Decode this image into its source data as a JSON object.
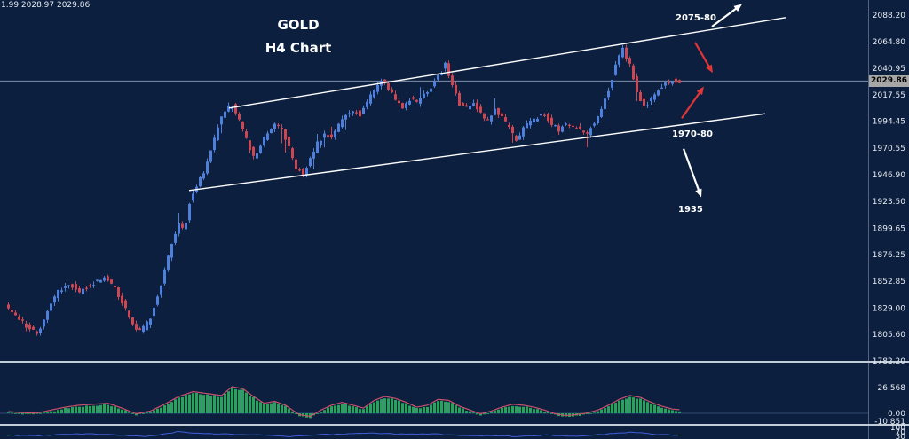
{
  "header": {
    "quote_line": "1.99 2028.97 2029.86",
    "title": "GOLD",
    "subtitle": "H4 Chart"
  },
  "colors": {
    "background": "#0c1f3f",
    "bull": "#4d7fdb",
    "bear": "#cc4752",
    "histogram": "#27a35b",
    "signal_line": "#c9506a",
    "indicator_line": "#3f5fd9",
    "trendline": "#ffffff",
    "annotation_red": "#e23535",
    "price_line": "#7e8ea8",
    "separator": "#c2cbd8",
    "axis_text": "#e8edf4",
    "current_price_bg": "#a7a7a7",
    "current_price_text": "#000000"
  },
  "price_axis": {
    "ticks": [
      "2088.20",
      "2064.80",
      "2040.95",
      "2017.55",
      "1994.45",
      "1970.55",
      "1946.90",
      "1923.50",
      "1899.65",
      "1876.25",
      "1852.85",
      "1829.00",
      "1805.60",
      "1782.20"
    ],
    "current": "2029.86"
  },
  "indicator1_axis": [
    "26.568",
    "0.00",
    "-10.851"
  ],
  "indicator2_axis": [
    "100",
    "70",
    "30"
  ],
  "chart_data": {
    "type": "candlestick",
    "symbol": "GOLD",
    "timeframe": "H4",
    "title": "GOLD H4 Chart",
    "y_axis": {
      "top": 2088.2,
      "bottom": 1782.2,
      "grid": false
    },
    "current_price": 2029.86,
    "price_path": [
      [
        8,
        1832
      ],
      [
        20,
        1822
      ],
      [
        34,
        1812
      ],
      [
        44,
        1806
      ],
      [
        56,
        1826
      ],
      [
        68,
        1845
      ],
      [
        82,
        1850
      ],
      [
        92,
        1843
      ],
      [
        102,
        1850
      ],
      [
        112,
        1852
      ],
      [
        122,
        1856
      ],
      [
        132,
        1846
      ],
      [
        142,
        1832
      ],
      [
        152,
        1813
      ],
      [
        162,
        1809
      ],
      [
        172,
        1820
      ],
      [
        180,
        1840
      ],
      [
        188,
        1862
      ],
      [
        196,
        1885
      ],
      [
        204,
        1905
      ],
      [
        210,
        1898
      ],
      [
        216,
        1922
      ],
      [
        224,
        1938
      ],
      [
        232,
        1950
      ],
      [
        240,
        1968
      ],
      [
        248,
        1990
      ],
      [
        256,
        2005
      ],
      [
        264,
        2008
      ],
      [
        272,
        1995
      ],
      [
        280,
        1978
      ],
      [
        288,
        1962
      ],
      [
        296,
        1972
      ],
      [
        304,
        1985
      ],
      [
        312,
        1992
      ],
      [
        320,
        1988
      ],
      [
        328,
        1972
      ],
      [
        336,
        1953
      ],
      [
        344,
        1948
      ],
      [
        352,
        1962
      ],
      [
        360,
        1975
      ],
      [
        368,
        1983
      ],
      [
        376,
        1979
      ],
      [
        384,
        1990
      ],
      [
        392,
        2000
      ],
      [
        400,
        2004
      ],
      [
        408,
        2000
      ],
      [
        416,
        2012
      ],
      [
        424,
        2022
      ],
      [
        432,
        2032
      ],
      [
        440,
        2024
      ],
      [
        448,
        2012
      ],
      [
        456,
        2005
      ],
      [
        464,
        2014
      ],
      [
        472,
        2010
      ],
      [
        480,
        2018
      ],
      [
        488,
        2024
      ],
      [
        496,
        2034
      ],
      [
        504,
        2044
      ],
      [
        512,
        2028
      ],
      [
        520,
        2010
      ],
      [
        528,
        2006
      ],
      [
        536,
        2012
      ],
      [
        544,
        2000
      ],
      [
        552,
        1996
      ],
      [
        560,
        2004
      ],
      [
        568,
        1998
      ],
      [
        576,
        1988
      ],
      [
        584,
        1976
      ],
      [
        592,
        1988
      ],
      [
        600,
        1994
      ],
      [
        608,
        1998
      ],
      [
        616,
        2000
      ],
      [
        624,
        1992
      ],
      [
        632,
        1986
      ],
      [
        640,
        1992
      ],
      [
        648,
        1990
      ],
      [
        656,
        1986
      ],
      [
        664,
        1984
      ],
      [
        672,
        1994
      ],
      [
        680,
        2006
      ],
      [
        688,
        2022
      ],
      [
        696,
        2044
      ],
      [
        704,
        2058
      ],
      [
        712,
        2044
      ],
      [
        720,
        2022
      ],
      [
        728,
        2006
      ],
      [
        736,
        2014
      ],
      [
        744,
        2022
      ],
      [
        752,
        2028
      ],
      [
        760,
        2030
      ],
      [
        768,
        2030
      ]
    ],
    "channel": {
      "upper": [
        [
          258,
          2006
        ],
        [
          885,
          2086
        ]
      ],
      "lower": [
        [
          213,
          1933
        ],
        [
          862,
          2001
        ]
      ]
    },
    "arrows": [
      {
        "color": "white",
        "dir": "up",
        "from": [
          802,
          2078
        ],
        "to": [
          836,
          2098
        ]
      },
      {
        "color": "red",
        "dir": "down",
        "from": [
          783,
          2064
        ],
        "to": [
          803,
          2037
        ]
      },
      {
        "color": "red",
        "dir": "up",
        "from": [
          768,
          1997
        ],
        "to": [
          793,
          2025
        ]
      },
      {
        "color": "white",
        "dir": "down",
        "from": [
          770,
          1970
        ],
        "to": [
          790,
          1927
        ]
      }
    ],
    "annotations": [
      {
        "text": "2075-80",
        "x": 785,
        "price": 2072
      },
      {
        "text": "1970-80",
        "x": 782,
        "price": 1972
      },
      {
        "text": "1935",
        "x": 778,
        "price": 1905
      }
    ],
    "indicators": [
      {
        "name": "momentum-histogram",
        "type": "bar",
        "ylim": [
          -10.851,
          26.568
        ],
        "scale_labels": [
          "26.568",
          "0.00",
          "-10.851"
        ],
        "path": [
          [
            8,
            0.5
          ],
          [
            24,
            -0.8
          ],
          [
            40,
            -1.2
          ],
          [
            56,
            2
          ],
          [
            72,
            5
          ],
          [
            88,
            7
          ],
          [
            104,
            8
          ],
          [
            120,
            9
          ],
          [
            136,
            4
          ],
          [
            152,
            -2
          ],
          [
            168,
            1
          ],
          [
            184,
            8
          ],
          [
            200,
            16
          ],
          [
            216,
            21
          ],
          [
            232,
            19
          ],
          [
            248,
            17
          ],
          [
            260,
            26
          ],
          [
            272,
            24
          ],
          [
            284,
            16
          ],
          [
            296,
            9
          ],
          [
            308,
            11
          ],
          [
            320,
            7
          ],
          [
            336,
            -3
          ],
          [
            348,
            -5
          ],
          [
            360,
            2
          ],
          [
            372,
            7
          ],
          [
            384,
            10
          ],
          [
            396,
            7
          ],
          [
            408,
            4
          ],
          [
            420,
            12
          ],
          [
            432,
            16
          ],
          [
            444,
            14
          ],
          [
            456,
            10
          ],
          [
            468,
            5
          ],
          [
            480,
            7
          ],
          [
            492,
            13
          ],
          [
            504,
            12
          ],
          [
            516,
            6
          ],
          [
            528,
            2
          ],
          [
            540,
            -2
          ],
          [
            552,
            1
          ],
          [
            564,
            5
          ],
          [
            576,
            8
          ],
          [
            588,
            7
          ],
          [
            600,
            5
          ],
          [
            612,
            2
          ],
          [
            624,
            -2
          ],
          [
            636,
            -4
          ],
          [
            648,
            -3
          ],
          [
            660,
            -1
          ],
          [
            672,
            2
          ],
          [
            684,
            7
          ],
          [
            696,
            13
          ],
          [
            708,
            17
          ],
          [
            720,
            15
          ],
          [
            732,
            10
          ],
          [
            744,
            6
          ],
          [
            756,
            3
          ],
          [
            768,
            2
          ]
        ]
      },
      {
        "name": "oscillator-line",
        "type": "line",
        "ylim": [
          0,
          100
        ],
        "scale_labels": [
          "100",
          "70",
          "30"
        ],
        "path": [
          [
            8,
            50
          ],
          [
            40,
            45
          ],
          [
            72,
            55
          ],
          [
            104,
            58
          ],
          [
            136,
            48
          ],
          [
            168,
            42
          ],
          [
            200,
            72
          ],
          [
            232,
            60
          ],
          [
            264,
            55
          ],
          [
            296,
            50
          ],
          [
            328,
            40
          ],
          [
            360,
            52
          ],
          [
            392,
            58
          ],
          [
            424,
            62
          ],
          [
            456,
            55
          ],
          [
            488,
            58
          ],
          [
            520,
            48
          ],
          [
            552,
            45
          ],
          [
            584,
            42
          ],
          [
            616,
            50
          ],
          [
            648,
            44
          ],
          [
            680,
            55
          ],
          [
            712,
            68
          ],
          [
            744,
            52
          ],
          [
            768,
            50
          ]
        ]
      }
    ]
  }
}
